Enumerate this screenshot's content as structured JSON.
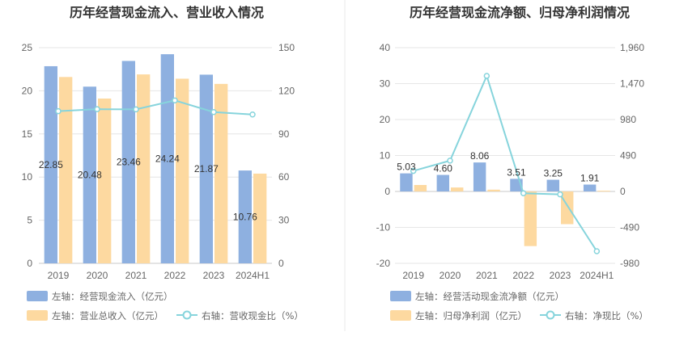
{
  "colors": {
    "bar_primary": "#8eb0e0",
    "bar_secondary": "#fdd9a0",
    "line": "#86d4dc",
    "grid": "#e6e6e6",
    "divider": "#e9e9e9"
  },
  "chart_data": [
    {
      "type": "bar",
      "title": "历年经营现金流入、营业收入情况",
      "categories": [
        "2019",
        "2020",
        "2021",
        "2022",
        "2023",
        "2024H1"
      ],
      "y_left": {
        "ticks": [
          "0",
          "5",
          "10",
          "15",
          "20",
          "25"
        ],
        "ylim": [
          0,
          25
        ]
      },
      "y_right": {
        "ticks": [
          "0",
          "30",
          "60",
          "90",
          "120",
          "150"
        ],
        "ylim": [
          0,
          150
        ]
      },
      "series": [
        {
          "name": "左轴：经营现金流入（亿元）",
          "kind": "bar",
          "axis": "left",
          "values": [
            22.85,
            20.48,
            23.46,
            24.24,
            21.87,
            10.76
          ],
          "labels": [
            "22.85",
            "20.48",
            "23.46",
            "24.24",
            "21.87",
            "10.76"
          ]
        },
        {
          "name": "左轴：营业总收入（亿元）",
          "kind": "bar",
          "axis": "left",
          "values": [
            21.6,
            19.1,
            21.9,
            21.4,
            20.8,
            10.4
          ]
        },
        {
          "name": "右轴：营收现金比（%）",
          "kind": "line",
          "axis": "right",
          "values": [
            105.8,
            107.2,
            107.1,
            113.3,
            105.2,
            103.5
          ]
        }
      ],
      "grid": true
    },
    {
      "type": "bar",
      "title": "历年经营现金流净额、归母净利润情况",
      "categories": [
        "2019",
        "2020",
        "2021",
        "2022",
        "2023",
        "2024H1"
      ],
      "y_left": {
        "ticks": [
          "-20",
          "-10",
          "0",
          "10",
          "20",
          "30",
          "40"
        ],
        "ylim": [
          -20,
          40
        ]
      },
      "y_right": {
        "ticks": [
          "-980",
          "-490",
          "0",
          "490",
          "980",
          "1,470",
          "1,960"
        ],
        "ylim": [
          -980,
          1960
        ]
      },
      "series": [
        {
          "name": "左轴：经营活动现金流净额（亿元）",
          "kind": "bar",
          "axis": "left",
          "values": [
            5.03,
            4.6,
            8.06,
            3.51,
            3.25,
            1.91
          ],
          "labels": [
            "5.03",
            "4.60",
            "8.06",
            "3.51",
            "3.25",
            "1.91"
          ]
        },
        {
          "name": "左轴：归母净利润（亿元）",
          "kind": "bar",
          "axis": "left",
          "values": [
            1.8,
            1.1,
            0.5,
            -15.2,
            -9.1,
            0.2
          ]
        },
        {
          "name": "右轴：净现比（%）",
          "kind": "line",
          "axis": "right",
          "values": [
            280,
            420,
            1575,
            -25,
            -40,
            -815
          ]
        }
      ],
      "grid": true
    }
  ]
}
